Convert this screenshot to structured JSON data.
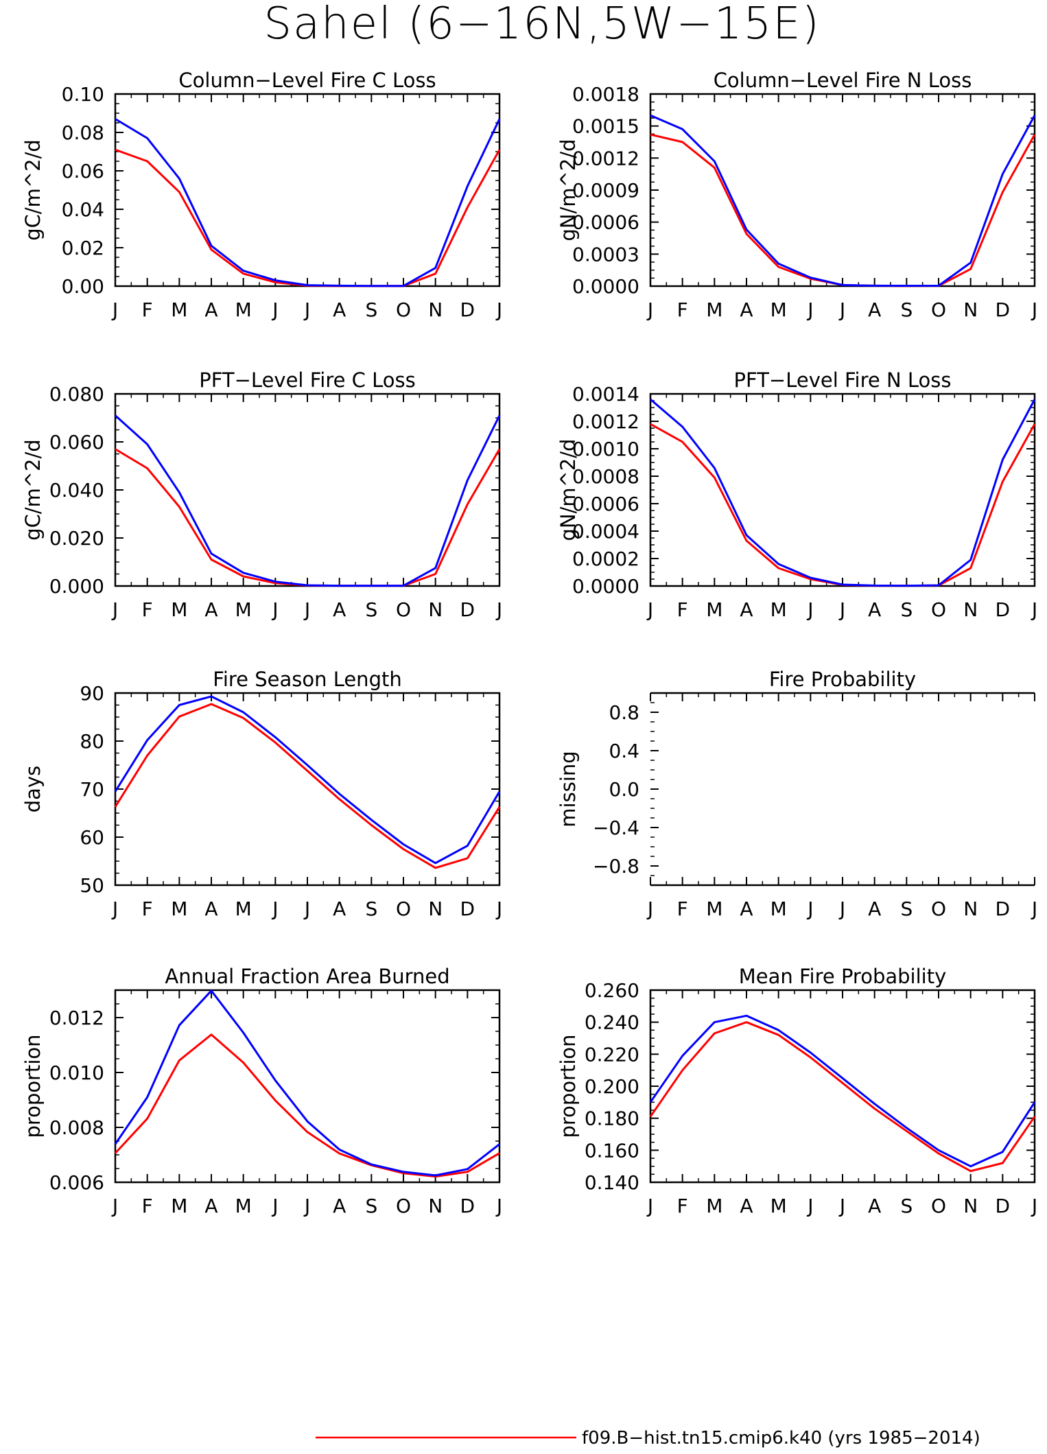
{
  "figure_title": "Sahel (6−16N,5W−15E)",
  "colors": {
    "red_series": "#ff0000",
    "blue_series": "#0000ff",
    "axes": "#000000"
  },
  "legend": {
    "label": "f09.B−hist.tn15.cmip6.k40 (yrs 1985−2014)",
    "color": "#ff0000"
  },
  "chart_data": [
    {
      "type": "line",
      "title": "Column−Level Fire C Loss",
      "ylabel": "gC/m^2/d",
      "categories": [
        "J",
        "F",
        "M",
        "A",
        "M",
        "J",
        "J",
        "A",
        "S",
        "O",
        "N",
        "D",
        "J"
      ],
      "ylim": [
        0,
        0.1
      ],
      "yticks": [
        "0.00",
        "0.02",
        "0.04",
        "0.06",
        "0.08",
        "0.10"
      ],
      "ytick_values": [
        0,
        0.02,
        0.04,
        0.06,
        0.08,
        0.1
      ],
      "series": [
        {
          "color": "#ff0000",
          "values": [
            0.071,
            0.065,
            0.049,
            0.019,
            0.0065,
            0.002,
            0.0003,
            0.0001,
            0.0001,
            0.0001,
            0.0065,
            0.041,
            0.071
          ]
        },
        {
          "color": "#0000ff",
          "values": [
            0.087,
            0.077,
            0.056,
            0.021,
            0.008,
            0.003,
            0.0005,
            0.0002,
            0.0001,
            0.0001,
            0.0095,
            0.052,
            0.087
          ]
        }
      ]
    },
    {
      "type": "line",
      "title": "Column−Level Fire N Loss",
      "ylabel": "gN/m^2/d",
      "categories": [
        "J",
        "F",
        "M",
        "A",
        "M",
        "J",
        "J",
        "A",
        "S",
        "O",
        "N",
        "D",
        "J"
      ],
      "ylim": [
        0,
        0.0018
      ],
      "yticks": [
        "0.0000",
        "0.0003",
        "0.0006",
        "0.0009",
        "0.0012",
        "0.0015",
        "0.0018"
      ],
      "ytick_values": [
        0,
        0.0003,
        0.0006,
        0.0009,
        0.0012,
        0.0015,
        0.0018
      ],
      "series": [
        {
          "color": "#ff0000",
          "values": [
            0.00142,
            0.00135,
            0.00111,
            0.00049,
            0.00018,
            7e-05,
            1e-05,
            3e-06,
            2e-06,
            3e-06,
            0.00016,
            0.00088,
            0.00142
          ]
        },
        {
          "color": "#0000ff",
          "values": [
            0.0016,
            0.00147,
            0.00117,
            0.00053,
            0.00021,
            8e-05,
            1e-05,
            4e-06,
            3e-06,
            4e-06,
            0.00022,
            0.00105,
            0.0016
          ]
        }
      ]
    },
    {
      "type": "line",
      "title": "PFT−Level Fire C Loss",
      "ylabel": "gC/m^2/d",
      "categories": [
        "J",
        "F",
        "M",
        "A",
        "M",
        "J",
        "J",
        "A",
        "S",
        "O",
        "N",
        "D",
        "J"
      ],
      "ylim": [
        0,
        0.08
      ],
      "yticks": [
        "0.000",
        "0.020",
        "0.040",
        "0.060",
        "0.080"
      ],
      "ytick_values": [
        0,
        0.02,
        0.04,
        0.06,
        0.08
      ],
      "series": [
        {
          "color": "#ff0000",
          "values": [
            0.057,
            0.049,
            0.033,
            0.011,
            0.004,
            0.0012,
            0.0002,
            0.0001,
            0.0001,
            0.0001,
            0.005,
            0.034,
            0.057
          ]
        },
        {
          "color": "#0000ff",
          "values": [
            0.071,
            0.059,
            0.039,
            0.0135,
            0.0055,
            0.0018,
            0.0003,
            0.0001,
            0.0001,
            0.0001,
            0.0075,
            0.044,
            0.071
          ]
        }
      ]
    },
    {
      "type": "line",
      "title": "PFT−Level Fire N Loss",
      "ylabel": "gN/m^2/d",
      "categories": [
        "J",
        "F",
        "M",
        "A",
        "M",
        "J",
        "J",
        "A",
        "S",
        "O",
        "N",
        "D",
        "J"
      ],
      "ylim": [
        0,
        0.0014
      ],
      "yticks": [
        "0.0000",
        "0.0002",
        "0.0004",
        "0.0006",
        "0.0008",
        "0.0010",
        "0.0012",
        "0.0014"
      ],
      "ytick_values": [
        0,
        0.0002,
        0.0004,
        0.0006,
        0.0008,
        0.001,
        0.0012,
        0.0014
      ],
      "series": [
        {
          "color": "#ff0000",
          "values": [
            0.00118,
            0.00105,
            0.00079,
            0.00033,
            0.00013,
            5e-05,
            8e-06,
            2e-06,
            2e-06,
            4e-06,
            0.00013,
            0.00076,
            0.00118
          ]
        },
        {
          "color": "#0000ff",
          "values": [
            0.00136,
            0.00116,
            0.00086,
            0.00037,
            0.00016,
            6e-05,
            1e-05,
            3e-06,
            2e-06,
            5e-06,
            0.00019,
            0.00092,
            0.00136
          ]
        }
      ]
    },
    {
      "type": "line",
      "title": "Fire Season Length",
      "ylabel": "days",
      "categories": [
        "J",
        "F",
        "M",
        "A",
        "M",
        "J",
        "J",
        "A",
        "S",
        "O",
        "N",
        "D",
        "J"
      ],
      "ylim": [
        50,
        90
      ],
      "yticks": [
        "50",
        "60",
        "70",
        "80",
        "90"
      ],
      "ytick_values": [
        50,
        60,
        70,
        80,
        90
      ],
      "series": [
        {
          "color": "#ff0000",
          "values": [
            66.3,
            77.0,
            85.1,
            87.7,
            84.8,
            79.7,
            73.8,
            67.9,
            62.5,
            57.5,
            53.6,
            55.6,
            66.3
          ]
        },
        {
          "color": "#0000ff",
          "values": [
            69.5,
            80.2,
            87.5,
            89.3,
            86.0,
            80.8,
            75.0,
            69.0,
            63.6,
            58.5,
            54.6,
            58.2,
            69.5
          ]
        }
      ]
    },
    {
      "type": "line",
      "title": "Fire Probability",
      "ylabel": "missing",
      "categories": [
        "J",
        "F",
        "M",
        "A",
        "M",
        "J",
        "J",
        "A",
        "S",
        "O",
        "N",
        "D",
        "J"
      ],
      "ylim": [
        -1.0,
        1.0
      ],
      "yticks": [
        "−0.8",
        "−0.4",
        "0.0",
        "0.4",
        "0.8"
      ],
      "ytick_values": [
        -0.8,
        -0.4,
        0.0,
        0.4,
        0.8
      ],
      "no_box": true,
      "series": []
    },
    {
      "type": "line",
      "title": "Annual Fraction Area Burned",
      "ylabel": "proportion",
      "categories": [
        "J",
        "F",
        "M",
        "A",
        "M",
        "J",
        "J",
        "A",
        "S",
        "O",
        "N",
        "D",
        "J"
      ],
      "ylim": [
        0.006,
        0.013
      ],
      "yticks": [
        "0.006",
        "0.008",
        "0.010",
        "0.012"
      ],
      "ytick_values": [
        0.006,
        0.008,
        0.01,
        0.012
      ],
      "series": [
        {
          "color": "#ff0000",
          "values": [
            0.00706,
            0.00832,
            0.01044,
            0.01138,
            0.01036,
            0.00898,
            0.00783,
            0.00705,
            0.00662,
            0.00633,
            0.00621,
            0.00638,
            0.00706
          ]
        },
        {
          "color": "#0000ff",
          "values": [
            0.00739,
            0.0091,
            0.01172,
            0.01298,
            0.01145,
            0.00971,
            0.00822,
            0.00719,
            0.00665,
            0.00638,
            0.00625,
            0.00648,
            0.00739
          ]
        }
      ]
    },
    {
      "type": "line",
      "title": "Mean Fire Probability",
      "ylabel": "proportion",
      "categories": [
        "J",
        "F",
        "M",
        "A",
        "M",
        "J",
        "J",
        "A",
        "S",
        "O",
        "N",
        "D",
        "J"
      ],
      "ylim": [
        0.14,
        0.26
      ],
      "yticks": [
        "0.140",
        "0.160",
        "0.180",
        "0.200",
        "0.220",
        "0.240",
        "0.260"
      ],
      "ytick_values": [
        0.14,
        0.16,
        0.18,
        0.2,
        0.22,
        0.24,
        0.26
      ],
      "series": [
        {
          "color": "#ff0000",
          "values": [
            0.181,
            0.21,
            0.233,
            0.24,
            0.232,
            0.218,
            0.202,
            0.186,
            0.172,
            0.158,
            0.147,
            0.152,
            0.181
          ]
        },
        {
          "color": "#0000ff",
          "values": [
            0.19,
            0.219,
            0.24,
            0.244,
            0.235,
            0.221,
            0.205,
            0.189,
            0.174,
            0.16,
            0.15,
            0.159,
            0.19
          ]
        }
      ]
    }
  ]
}
